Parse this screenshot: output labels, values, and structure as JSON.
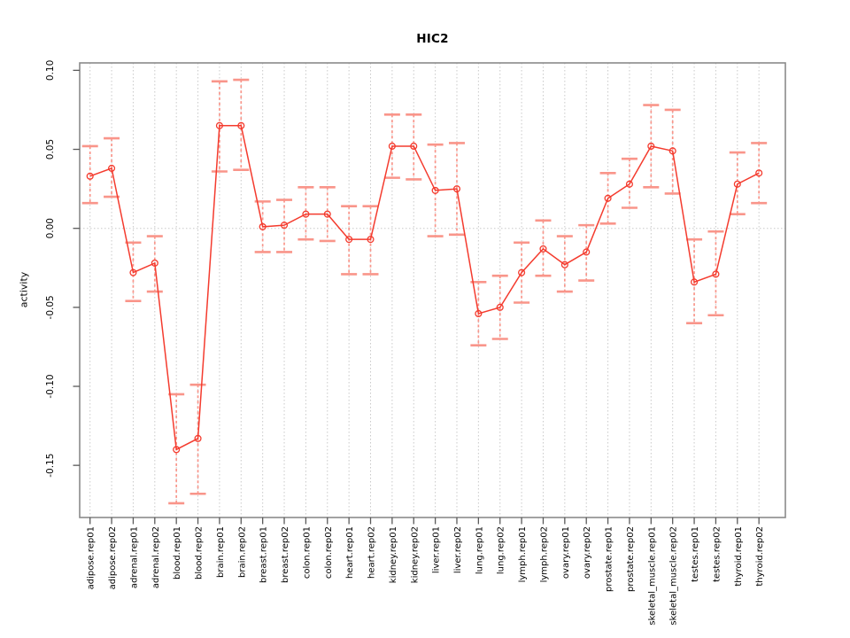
{
  "chart_data": {
    "type": "line",
    "title": "HIC2",
    "ylabel": "activity",
    "xlabel": "",
    "legend_position": "none",
    "marker": "open-circle",
    "error_bars": true,
    "grid": {
      "vertical": "dotted-per-category",
      "horizontal": "dotted-at-zero"
    },
    "ylim": [
      -0.183,
      0.1047
    ],
    "yticks": {
      "values": [
        0.1,
        0.05,
        0.0,
        -0.05,
        -0.1,
        -0.15
      ],
      "labels": [
        "0.10",
        "0.05",
        "0.00",
        "-0.05",
        "-0.10",
        "-0.15"
      ]
    },
    "categories": [
      "adipose.rep01",
      "adipose.rep02",
      "adrenal.rep01",
      "adrenal.rep02",
      "blood.rep01",
      "blood.rep02",
      "brain.rep01",
      "brain.rep02",
      "breast.rep01",
      "breast.rep02",
      "colon.rep01",
      "colon.rep02",
      "heart.rep01",
      "heart.rep02",
      "kidney.rep01",
      "kidney.rep02",
      "liver.rep01",
      "liver.rep02",
      "lung.rep01",
      "lung.rep02",
      "lymph.rep01",
      "lymph.rep02",
      "ovary.rep01",
      "ovary.rep02",
      "prostate.rep01",
      "prostate.rep02",
      "skeletal_muscle.rep01",
      "skeletal_muscle.rep02",
      "testes.rep01",
      "testes.rep02",
      "thyroid.rep01",
      "thyroid.rep02"
    ],
    "values": [
      0.033,
      0.038,
      -0.028,
      -0.022,
      -0.14,
      -0.133,
      0.065,
      0.065,
      0.001,
      0.002,
      0.009,
      0.009,
      -0.007,
      -0.007,
      0.052,
      0.052,
      0.024,
      0.025,
      -0.054,
      -0.05,
      -0.028,
      -0.013,
      -0.023,
      -0.015,
      0.019,
      0.028,
      0.052,
      0.049,
      -0.034,
      -0.029,
      0.028,
      0.035
    ],
    "ci_low": [
      0.016,
      0.02,
      -0.046,
      -0.04,
      -0.174,
      -0.168,
      0.036,
      0.037,
      -0.015,
      -0.015,
      -0.007,
      -0.008,
      -0.029,
      -0.029,
      0.032,
      0.031,
      -0.005,
      -0.004,
      -0.074,
      -0.07,
      -0.047,
      -0.03,
      -0.04,
      -0.033,
      0.003,
      0.013,
      0.026,
      0.022,
      -0.06,
      -0.055,
      0.009,
      0.016
    ],
    "ci_high": [
      0.052,
      0.057,
      -0.009,
      -0.005,
      -0.105,
      -0.099,
      0.093,
      0.094,
      0.017,
      0.018,
      0.026,
      0.026,
      0.014,
      0.014,
      0.072,
      0.072,
      0.053,
      0.054,
      -0.034,
      -0.03,
      -0.009,
      0.005,
      -0.005,
      0.002,
      0.035,
      0.044,
      0.078,
      0.075,
      -0.007,
      -0.002,
      0.048,
      0.054
    ],
    "colors": {
      "series": "#f43b2e",
      "error_bar": "#f9958a",
      "grid": "#c9c9c9",
      "box": "#8a8a8a",
      "tick": "#5a5a5a",
      "text": "#000000",
      "background": "#ffffff"
    }
  }
}
